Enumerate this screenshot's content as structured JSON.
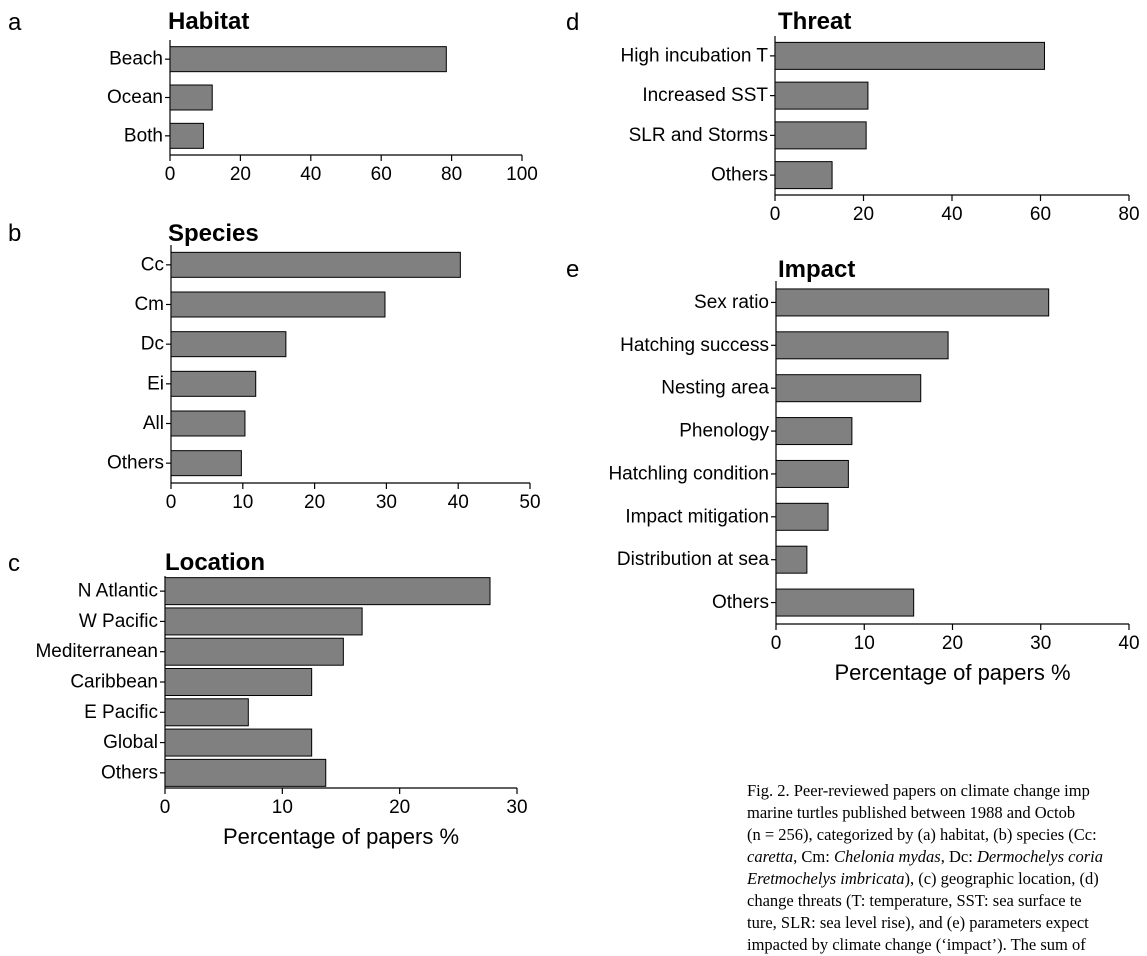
{
  "chart_data": [
    {
      "panel": "a",
      "type": "bar",
      "orientation": "horizontal",
      "title": "Habitat",
      "categories": [
        "Beach",
        "Ocean",
        "Both"
      ],
      "values": [
        78.5,
        12,
        9.5
      ],
      "xlim": [
        0,
        100
      ],
      "xticks": [
        0,
        20,
        40,
        60,
        80,
        100
      ],
      "xlabel": "",
      "grid": false
    },
    {
      "panel": "b",
      "type": "bar",
      "orientation": "horizontal",
      "title": "Species",
      "categories": [
        "Cc",
        "Cm",
        "Dc",
        "Ei",
        "All",
        "Others"
      ],
      "values": [
        40.3,
        29.8,
        16,
        11.8,
        10.3,
        9.8
      ],
      "xlim": [
        0,
        50
      ],
      "xticks": [
        0,
        10,
        20,
        30,
        40,
        50
      ],
      "xlabel": "",
      "grid": false
    },
    {
      "panel": "c",
      "type": "bar",
      "orientation": "horizontal",
      "title": "Location",
      "categories": [
        "N Atlantic",
        "W Pacific",
        "Mediterranean",
        "Caribbean",
        "E Pacific",
        "Global",
        "Others"
      ],
      "values": [
        27.7,
        16.8,
        15.2,
        12.5,
        7.1,
        12.5,
        13.7
      ],
      "xlim": [
        0,
        30
      ],
      "xticks": [
        0,
        10,
        20,
        30
      ],
      "xlabel": "Percentage of papers %",
      "grid": false
    },
    {
      "panel": "d",
      "type": "bar",
      "orientation": "horizontal",
      "title": "Threat",
      "categories": [
        "High incubation T",
        "Increased SST",
        "SLR and Storms",
        "Others"
      ],
      "values": [
        60.9,
        21,
        20.6,
        12.9
      ],
      "xlim": [
        0,
        80
      ],
      "xticks": [
        0,
        20,
        40,
        60,
        80
      ],
      "xlabel": "",
      "grid": false
    },
    {
      "panel": "e",
      "type": "bar",
      "orientation": "horizontal",
      "title": "Impact",
      "categories": [
        "Sex ratio",
        "Hatching success",
        "Nesting area",
        "Phenology",
        "Hatchling condition",
        "Impact mitigation",
        "Distribution at sea",
        "Others"
      ],
      "values": [
        30.9,
        19.5,
        16.4,
        8.6,
        8.2,
        5.9,
        3.5,
        15.6
      ],
      "xlim": [
        0,
        40
      ],
      "xticks": [
        0,
        10,
        20,
        30,
        40
      ],
      "xlabel": "Percentage of papers %",
      "grid": false
    }
  ],
  "style": {
    "bar_fill": "#808080",
    "bar_stroke": "#000000",
    "text_color": "#000000"
  },
  "caption": {
    "lines": [
      [
        {
          "t": "Fig. 2. Peer-reviewed papers on climate change imp"
        }
      ],
      [
        {
          "t": "marine turtles published between 1988 and Octob"
        }
      ],
      [
        {
          "t": "(n = 256), categorized by (a) habitat, (b) species (Cc: "
        }
      ],
      [
        {
          "t": "caretta",
          "i": true
        },
        {
          "t": ", Cm: "
        },
        {
          "t": "Chelonia mydas",
          "i": true
        },
        {
          "t": ", Dc: "
        },
        {
          "t": "Dermochelys coria",
          "i": true
        }
      ],
      [
        {
          "t": "Eretmochelys imbricata",
          "i": true
        },
        {
          "t": "), (c) geographic location, (d)"
        }
      ],
      [
        {
          "t": "change threats (T: temperature, SST: sea surface te"
        }
      ],
      [
        {
          "t": "ture, SLR: sea level rise), and (e) parameters expect"
        }
      ],
      [
        {
          "t": "impacted by climate change (‘impact’). The sum of"
        }
      ]
    ]
  }
}
